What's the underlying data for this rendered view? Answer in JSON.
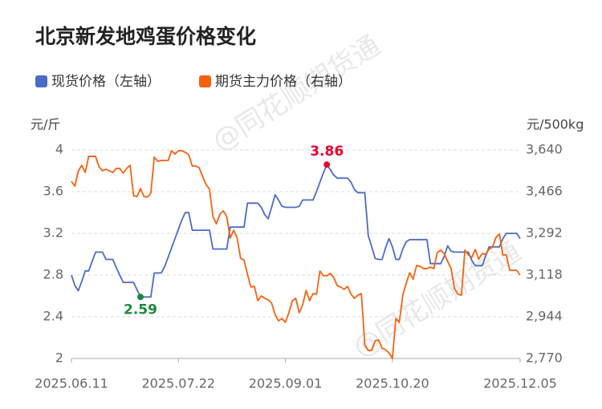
{
  "chart_data": {
    "type": "line",
    "title": "北京新发地鸡蛋价格变化",
    "watermark": "@同花顺期货通",
    "ylabel": "元/斤",
    "y2label": "元/500kg",
    "categories": [
      "2025.06.11",
      null,
      null,
      null,
      null,
      null,
      null,
      null,
      null,
      null,
      null,
      null,
      null,
      null,
      null,
      null,
      null,
      null,
      null,
      null,
      null,
      null,
      null,
      null,
      null,
      null,
      null,
      null,
      null,
      null,
      null,
      "2025.07.22",
      null,
      null,
      null,
      null,
      null,
      null,
      null,
      null,
      null,
      null,
      null,
      null,
      null,
      null,
      null,
      null,
      null,
      null,
      null,
      null,
      null,
      null,
      null,
      null,
      null,
      null,
      null,
      null,
      null,
      null,
      "2025.09.01",
      null,
      null,
      null,
      null,
      null,
      null,
      null,
      null,
      null,
      null,
      null,
      null,
      null,
      null,
      null,
      null,
      null,
      null,
      null,
      null,
      null,
      null,
      null,
      null,
      null,
      null,
      null,
      null,
      null,
      null,
      "2025.10.20",
      null,
      null,
      null,
      null,
      null,
      null,
      null,
      null,
      null,
      null,
      null,
      null,
      null,
      null,
      null,
      null,
      null,
      null,
      null,
      null,
      null,
      null,
      null,
      null,
      null,
      null,
      null,
      null,
      null,
      null,
      null,
      null,
      null,
      null,
      null,
      null,
      "2025.12.05"
    ],
    "series": [
      {
        "name": "现货价格（左轴）",
        "color": "#4a6bc8",
        "axis": "y",
        "values": [
          2.8,
          2.7,
          2.65,
          2.74,
          2.84,
          2.84,
          2.93,
          3.02,
          3.02,
          3.02,
          2.95,
          2.95,
          2.95,
          2.87,
          2.8,
          2.73,
          2.73,
          2.73,
          2.73,
          2.66,
          2.59,
          2.59,
          2.59,
          2.59,
          2.82,
          2.82,
          2.82,
          2.88,
          2.97,
          3.06,
          3.15,
          3.24,
          3.33,
          3.4,
          3.4,
          3.23,
          3.23,
          3.23,
          3.23,
          3.23,
          3.23,
          3.05,
          3.05,
          3.05,
          3.05,
          3.05,
          3.26,
          3.26,
          3.26,
          3.26,
          3.26,
          3.49,
          3.49,
          3.49,
          3.49,
          3.45,
          3.38,
          3.34,
          3.45,
          3.57,
          3.52,
          3.46,
          3.45,
          3.45,
          3.45,
          3.45,
          3.46,
          3.52,
          3.52,
          3.52,
          3.52,
          3.6,
          3.69,
          3.78,
          3.86,
          3.81,
          3.76,
          3.73,
          3.73,
          3.73,
          3.73,
          3.69,
          3.62,
          3.59,
          3.59,
          3.59,
          3.18,
          3.07,
          2.96,
          2.95,
          2.95,
          3.06,
          3.15,
          3.07,
          2.95,
          2.95,
          3.05,
          3.12,
          3.14,
          3.14,
          3.14,
          3.14,
          3.14,
          3.14,
          2.91,
          2.91,
          2.91,
          2.91,
          2.98,
          3.08,
          3.03,
          3.02,
          3.02,
          3.02,
          3.02,
          3.02,
          2.94,
          2.89,
          2.89,
          2.89,
          2.98,
          3.07,
          3.07,
          3.07,
          3.07,
          3.15,
          3.2,
          3.2,
          3.2,
          3.2,
          3.15
        ]
      },
      {
        "name": "期货主力价格（右轴）",
        "color": "#f5620f",
        "axis": "y2",
        "values": [
          3509,
          3489,
          3553,
          3576,
          3546,
          3613,
          3613,
          3613,
          3570,
          3553,
          3560,
          3553,
          3546,
          3563,
          3563,
          3543,
          3563,
          3576,
          3449,
          3446,
          3479,
          3446,
          3443,
          3459,
          3610,
          3593,
          3596,
          3596,
          3596,
          3637,
          3623,
          3637,
          3637,
          3630,
          3620,
          3573,
          3573,
          3566,
          3530,
          3496,
          3476,
          3362,
          3332,
          3372,
          3386,
          3362,
          3272,
          3305,
          3275,
          3188,
          3181,
          3121,
          3068,
          3071,
          3011,
          3031,
          3021,
          3014,
          3001,
          2954,
          2927,
          2937,
          2921,
          2961,
          3011,
          3021,
          2961,
          2994,
          3054,
          3011,
          3041,
          3038,
          3135,
          3115,
          3115,
          3125,
          3108,
          3074,
          3068,
          3058,
          3071,
          3038,
          3021,
          3034,
          3041,
          2827,
          2803,
          2803,
          2844,
          2847,
          2813,
          2807,
          2793,
          2770,
          2937,
          2921,
          3034,
          3084,
          3128,
          3101,
          3158,
          3155,
          3145,
          3145,
          3151,
          3145,
          3212,
          3222,
          3208,
          3175,
          3145,
          3061,
          3038,
          3034,
          3222,
          3202,
          3192,
          3225,
          3185,
          3208,
          3205,
          3225,
          3235,
          3275,
          3289,
          3202,
          3202,
          3138,
          3138,
          3138,
          3118
        ]
      }
    ],
    "annotations": [
      {
        "label": "3.86",
        "series": 0,
        "index": 74,
        "color": "#e8002d"
      },
      {
        "label": "2.59",
        "series": 0,
        "index": 20,
        "color": "#1a8a3a"
      }
    ],
    "ylim": [
      2,
      4
    ],
    "yticks": [
      2,
      2.4,
      2.8,
      3.2,
      3.6,
      4
    ],
    "y2lim": [
      2770,
      3640
    ],
    "y2ticks": [
      {
        "value": 2770,
        "label": "2,770"
      },
      {
        "value": 2944,
        "label": "2,944"
      },
      {
        "value": 3118,
        "label": "3,118"
      },
      {
        "value": 3292,
        "label": "3,292"
      },
      {
        "value": 3466,
        "label": "3,466"
      },
      {
        "value": 3640,
        "label": "3,640"
      }
    ],
    "grid": true,
    "legend": "top-left"
  }
}
